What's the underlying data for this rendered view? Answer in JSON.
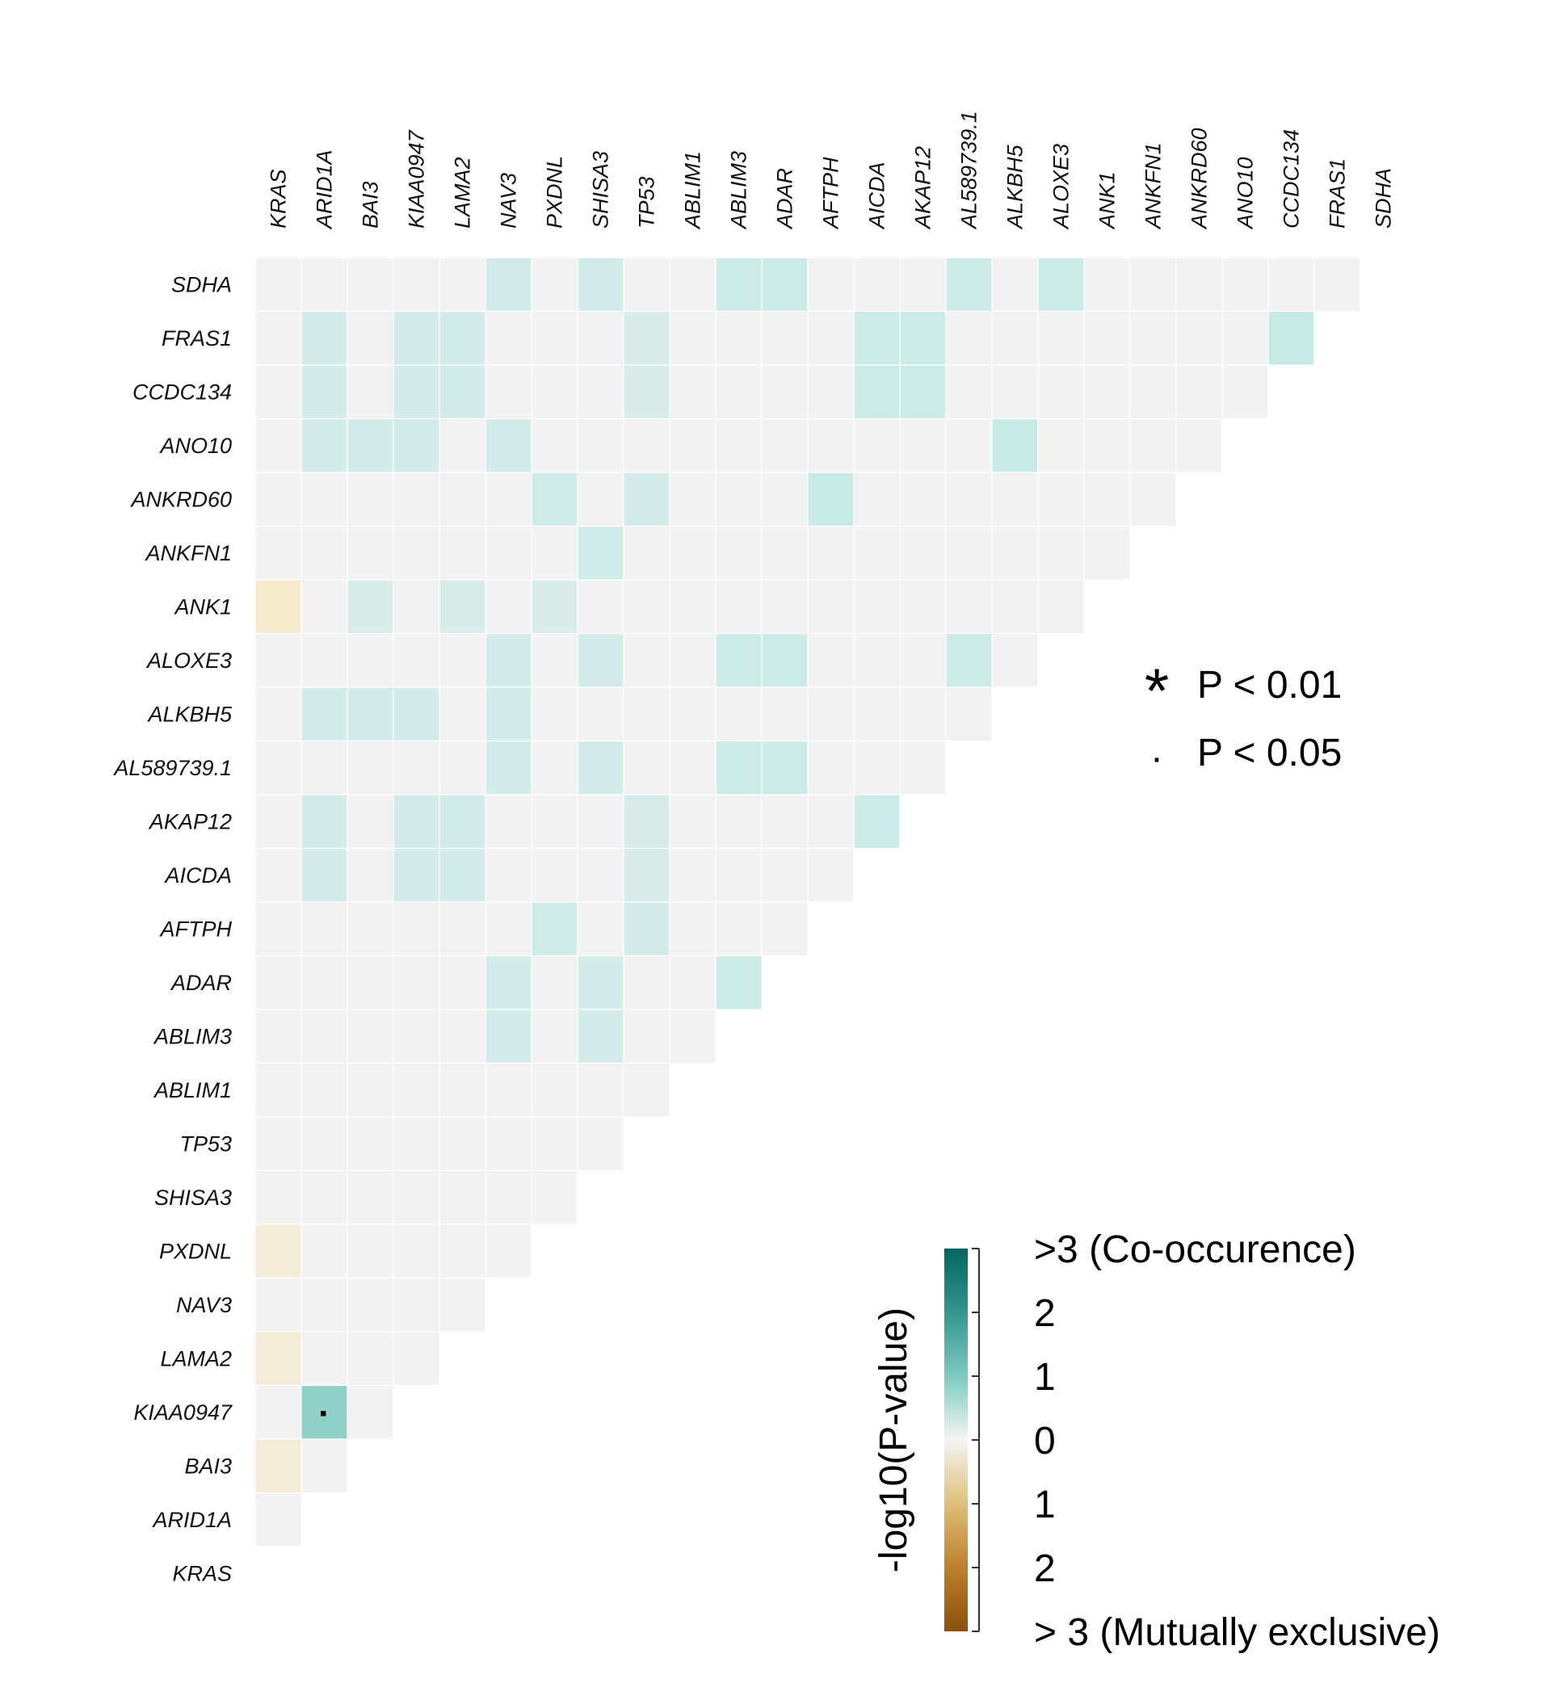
{
  "chart_data": {
    "type": "heatmap",
    "genes_columns": [
      "KRAS",
      "ARID1A",
      "BAI3",
      "KIAA0947",
      "LAMA2",
      "NAV3",
      "PXDNL",
      "SHISA3",
      "TP53",
      "ABLIM1",
      "ABLIM3",
      "ADAR",
      "AFTPH",
      "AICDA",
      "AKAP12",
      "AL589739.1",
      "ALKBH5",
      "ALOXE3",
      "ANK1",
      "ANKFN1",
      "ANKRD60",
      "ANO10",
      "CCDC134",
      "FRAS1",
      "SDHA"
    ],
    "genes_rows": [
      "SDHA",
      "FRAS1",
      "CCDC134",
      "ANO10",
      "ANKRD60",
      "ANKFN1",
      "ANK1",
      "ALOXE3",
      "ALKBH5",
      "AL589739.1",
      "AKAP12",
      "AICDA",
      "AFTPH",
      "ADAR",
      "ABLIM3",
      "ABLIM1",
      "TP53",
      "SHISA3",
      "PXDNL",
      "NAV3",
      "LAMA2",
      "KIAA0947",
      "BAI3",
      "ARID1A",
      "KRAS"
    ],
    "value_description": "signed -log10(P-value); positive = co-occurrence, negative = mutual exclusivity; 0 = not significant",
    "cells": [
      {
        "row": "SDHA",
        "col": "NAV3",
        "value": 0.7
      },
      {
        "row": "SDHA",
        "col": "SHISA3",
        "value": 0.7
      },
      {
        "row": "SDHA",
        "col": "ABLIM3",
        "value": 0.9
      },
      {
        "row": "SDHA",
        "col": "ADAR",
        "value": 0.9
      },
      {
        "row": "SDHA",
        "col": "AL589739.1",
        "value": 0.9
      },
      {
        "row": "SDHA",
        "col": "ALOXE3",
        "value": 0.9
      },
      {
        "row": "FRAS1",
        "col": "ARID1A",
        "value": 0.7
      },
      {
        "row": "FRAS1",
        "col": "KIAA0947",
        "value": 0.7
      },
      {
        "row": "FRAS1",
        "col": "LAMA2",
        "value": 0.7
      },
      {
        "row": "FRAS1",
        "col": "TP53",
        "value": 0.6
      },
      {
        "row": "FRAS1",
        "col": "AICDA",
        "value": 0.9
      },
      {
        "row": "FRAS1",
        "col": "AKAP12",
        "value": 0.9
      },
      {
        "row": "FRAS1",
        "col": "CCDC134",
        "value": 1.0
      },
      {
        "row": "CCDC134",
        "col": "ARID1A",
        "value": 0.7
      },
      {
        "row": "CCDC134",
        "col": "KIAA0947",
        "value": 0.7
      },
      {
        "row": "CCDC134",
        "col": "LAMA2",
        "value": 0.7
      },
      {
        "row": "CCDC134",
        "col": "TP53",
        "value": 0.6
      },
      {
        "row": "CCDC134",
        "col": "AICDA",
        "value": 0.9
      },
      {
        "row": "CCDC134",
        "col": "AKAP12",
        "value": 0.9
      },
      {
        "row": "ANO10",
        "col": "ARID1A",
        "value": 0.7
      },
      {
        "row": "ANO10",
        "col": "BAI3",
        "value": 0.7
      },
      {
        "row": "ANO10",
        "col": "KIAA0947",
        "value": 0.7
      },
      {
        "row": "ANO10",
        "col": "NAV3",
        "value": 0.7
      },
      {
        "row": "ANO10",
        "col": "ALKBH5",
        "value": 1.0
      },
      {
        "row": "ANKRD60",
        "col": "PXDNL",
        "value": 0.8
      },
      {
        "row": "ANKRD60",
        "col": "TP53",
        "value": 0.7
      },
      {
        "row": "ANKRD60",
        "col": "AFTPH",
        "value": 1.0
      },
      {
        "row": "ANKFN1",
        "col": "SHISA3",
        "value": 0.8
      },
      {
        "row": "ANK1",
        "col": "KRAS",
        "value": -0.8
      },
      {
        "row": "ANK1",
        "col": "BAI3",
        "value": 0.6
      },
      {
        "row": "ANK1",
        "col": "LAMA2",
        "value": 0.6
      },
      {
        "row": "ANK1",
        "col": "PXDNL",
        "value": 0.6
      },
      {
        "row": "ALOXE3",
        "col": "NAV3",
        "value": 0.7
      },
      {
        "row": "ALOXE3",
        "col": "SHISA3",
        "value": 0.7
      },
      {
        "row": "ALOXE3",
        "col": "ABLIM3",
        "value": 0.9
      },
      {
        "row": "ALOXE3",
        "col": "ADAR",
        "value": 0.9
      },
      {
        "row": "ALOXE3",
        "col": "AL589739.1",
        "value": 0.9
      },
      {
        "row": "ALKBH5",
        "col": "ARID1A",
        "value": 0.7
      },
      {
        "row": "ALKBH5",
        "col": "BAI3",
        "value": 0.7
      },
      {
        "row": "ALKBH5",
        "col": "KIAA0947",
        "value": 0.7
      },
      {
        "row": "ALKBH5",
        "col": "NAV3",
        "value": 0.7
      },
      {
        "row": "AL589739.1",
        "col": "NAV3",
        "value": 0.7
      },
      {
        "row": "AL589739.1",
        "col": "SHISA3",
        "value": 0.7
      },
      {
        "row": "AL589739.1",
        "col": "ABLIM3",
        "value": 0.9
      },
      {
        "row": "AL589739.1",
        "col": "ADAR",
        "value": 0.9
      },
      {
        "row": "AKAP12",
        "col": "ARID1A",
        "value": 0.7
      },
      {
        "row": "AKAP12",
        "col": "KIAA0947",
        "value": 0.7
      },
      {
        "row": "AKAP12",
        "col": "LAMA2",
        "value": 0.7
      },
      {
        "row": "AKAP12",
        "col": "TP53",
        "value": 0.6
      },
      {
        "row": "AKAP12",
        "col": "AICDA",
        "value": 0.9
      },
      {
        "row": "AICDA",
        "col": "ARID1A",
        "value": 0.7
      },
      {
        "row": "AICDA",
        "col": "KIAA0947",
        "value": 0.7
      },
      {
        "row": "AICDA",
        "col": "LAMA2",
        "value": 0.7
      },
      {
        "row": "AICDA",
        "col": "TP53",
        "value": 0.6
      },
      {
        "row": "AFTPH",
        "col": "PXDNL",
        "value": 0.8
      },
      {
        "row": "AFTPH",
        "col": "TP53",
        "value": 0.7
      },
      {
        "row": "ADAR",
        "col": "NAV3",
        "value": 0.7
      },
      {
        "row": "ADAR",
        "col": "SHISA3",
        "value": 0.7
      },
      {
        "row": "ADAR",
        "col": "ABLIM3",
        "value": 0.9
      },
      {
        "row": "ABLIM3",
        "col": "NAV3",
        "value": 0.7
      },
      {
        "row": "ABLIM3",
        "col": "SHISA3",
        "value": 0.7
      },
      {
        "row": "PXDNL",
        "col": "KRAS",
        "value": -0.6
      },
      {
        "row": "LAMA2",
        "col": "KRAS",
        "value": -0.6
      },
      {
        "row": "KIAA0947",
        "col": "ARID1A",
        "value": 1.5,
        "significance": "P < 0.05"
      },
      {
        "row": "BAI3",
        "col": "KRAS",
        "value": -0.6
      }
    ],
    "legend": {
      "significance": [
        {
          "symbol": "*",
          "label": "P < 0.01"
        },
        {
          "symbol": "·",
          "label": "P < 0.05"
        }
      ],
      "colorbar_title": "-log10(P-value)",
      "colorbar_ticks": [
        {
          "value": 3,
          "label": ">3 (Co-occurence)"
        },
        {
          "value": 2,
          "label": "2"
        },
        {
          "value": 1,
          "label": "1"
        },
        {
          "value": 0,
          "label": "0"
        },
        {
          "value": -1,
          "label": "1"
        },
        {
          "value": -2,
          "label": "2"
        },
        {
          "value": -3,
          "label": "> 3 (Mutually exclusive)"
        }
      ],
      "colorbar_range": [
        -3,
        3
      ]
    },
    "colors": {
      "neutral": "#f2f2f2",
      "co_occurrence_high": "#01665e",
      "co_occurrence_mid": "#5ab4ac",
      "co_occurrence_low": "#c7eae5",
      "exclusive_low": "#f6e8c3",
      "exclusive_mid": "#d8b365",
      "exclusive_high": "#8c510a"
    }
  }
}
